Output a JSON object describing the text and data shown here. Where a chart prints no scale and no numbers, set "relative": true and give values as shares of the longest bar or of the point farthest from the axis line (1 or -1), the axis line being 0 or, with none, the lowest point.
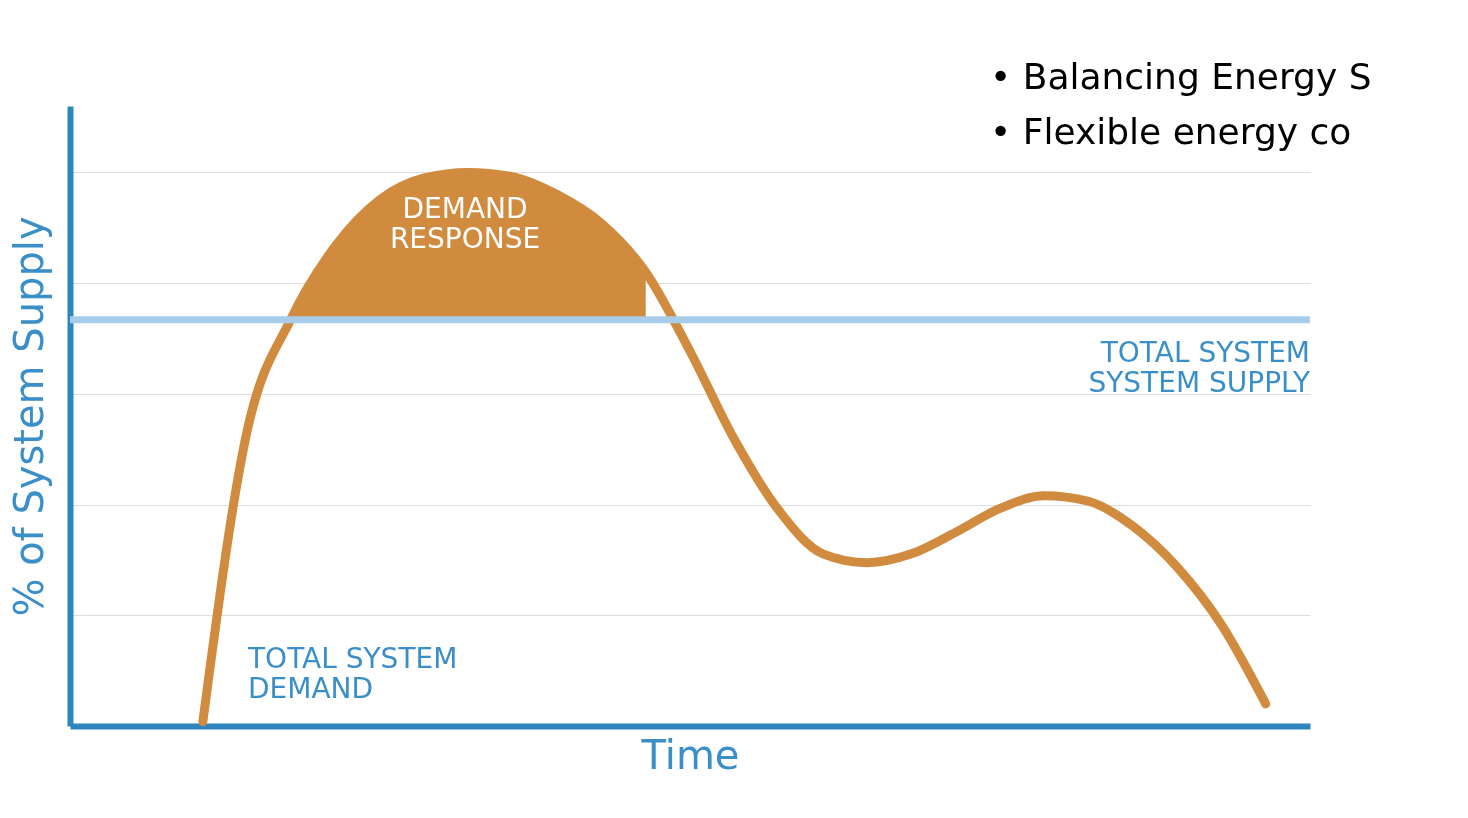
{
  "chart_data": {
    "type": "line",
    "relative": true,
    "xlabel": "Time",
    "ylabel": "% of System Supply",
    "categories": [
      null,
      null,
      null,
      null,
      null,
      null,
      null,
      null,
      null,
      null,
      null,
      null,
      null,
      null,
      null,
      null,
      null,
      null,
      null,
      null,
      null,
      null,
      null,
      null,
      null
    ],
    "series": [
      {
        "color": "#d18b3f",
        "values": [
          0.008,
          0.533,
          0.737,
          0.868,
          0.951,
          0.99,
          1,
          0.992,
          0.96,
          0.908,
          0.82,
          0.677,
          0.518,
          0.39,
          0.311,
          0.295,
          0.311,
          0.35,
          0.393,
          0.416,
          0.406,
          0.361,
          0.287,
          0.183,
          0.04
        ]
      },
      {
        "type": "area",
        "color": "#d18b3f",
        "values": [
          null,
          null,
          0.737,
          0.868,
          0.951,
          0.99,
          1,
          0.992,
          0.96,
          0.908,
          0.82,
          null,
          null,
          null,
          null,
          null,
          null,
          null,
          null,
          null,
          null,
          null,
          null,
          null,
          null
        ]
      }
    ],
    "ref_lines": [
      {
        "axis": "y",
        "value": 0.734,
        "label": "TOTAL SYSTEM\nSYSTEM SUPPLY",
        "color": "#a7cdea"
      }
    ],
    "annotations": [
      "DEMAND\nRESPONSE",
      "TOTAL SYSTEM\nDEMAND",
      "• Balancing Energy S",
      "• Flexible energy co"
    ],
    "grid": "y"
  }
}
